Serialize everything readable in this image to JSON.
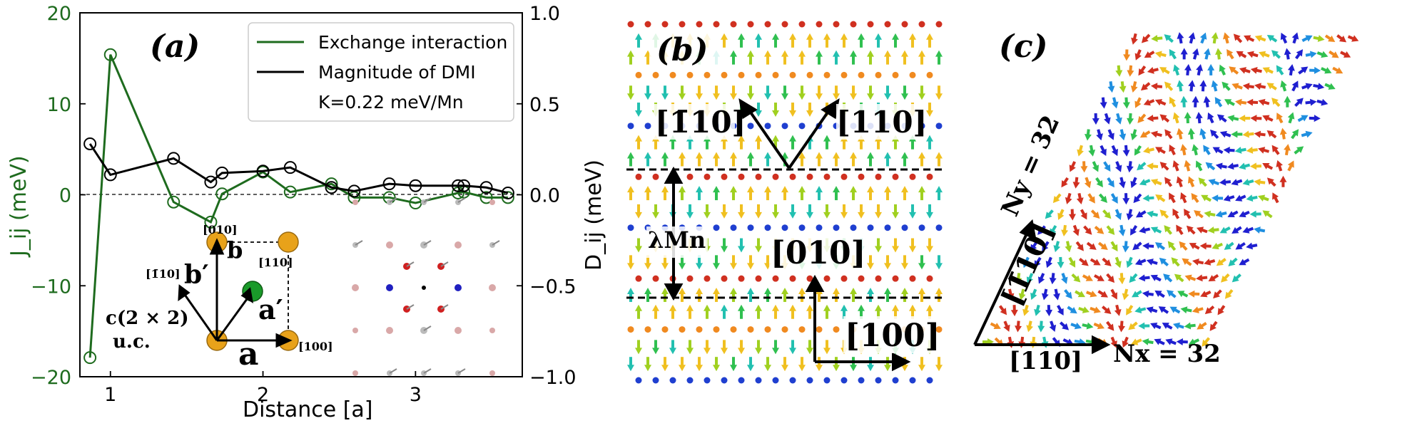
{
  "chart_data": {
    "type": "line",
    "panel_label": "(a)",
    "xlabel": "Distance [a]",
    "ylabel_left": "J_ij (meV)",
    "ylabel_right": "D_ij (meV)",
    "xlim": [
      0.8,
      3.7
    ],
    "ylim_left": [
      -20,
      20
    ],
    "ylim_right": [
      -1.0,
      1.0
    ],
    "xticks": [
      "1",
      "2",
      "3"
    ],
    "yticks_left": [
      "20",
      "10",
      "0",
      "−10",
      "−20"
    ],
    "yticks_right": [
      "1.0",
      "0.5",
      "0.0",
      "−0.5",
      "−1.0"
    ],
    "zero_line": "dashed",
    "legend_position": "top-right",
    "legend": [
      "Exchange interaction",
      "Magnitude of DMI",
      "K=0.22 meV/Mn"
    ],
    "series": [
      {
        "name": "Exchange interaction",
        "color": "#1e6b1e",
        "axis": "left",
        "x": [
          0.866,
          1.0,
          1.414,
          1.658,
          1.732,
          2.0,
          2.179,
          2.449,
          2.598,
          2.828,
          3.0,
          3.279,
          3.317,
          3.464,
          3.606
        ],
        "y": [
          -17.9,
          15.4,
          -0.8,
          -3.0,
          0.1,
          2.5,
          0.3,
          1.2,
          -0.3,
          -0.3,
          -0.9,
          0.2,
          0.3,
          -0.3,
          -0.3
        ]
      },
      {
        "name": "Magnitude of DMI",
        "color": "#000000",
        "axis": "right",
        "x": [
          0.866,
          1.0,
          1.414,
          1.658,
          1.732,
          2.0,
          2.179,
          2.449,
          2.598,
          2.828,
          3.0,
          3.279,
          3.317,
          3.464,
          3.606
        ],
        "y": [
          0.28,
          0.11,
          0.2,
          0.07,
          0.12,
          0.13,
          0.15,
          0.04,
          0.02,
          0.06,
          0.05,
          0.05,
          0.05,
          0.04,
          0.01
        ]
      }
    ]
  },
  "inset_a": {
    "miller_010": "[010]",
    "miller_110": "[110]",
    "miller_m110": "[1̄10]",
    "miller_100": "[100]",
    "vec_b_prime": "b′",
    "vec_b": "b",
    "vec_a_prime": "a′",
    "vec_a": "a",
    "cell_line1": "c(2 × 2)",
    "cell_line2": "u.c."
  },
  "panel_b": {
    "label": "(b)",
    "dir_m110": "[1̄10]",
    "dir_110": "[110]",
    "dir_010": "[010]",
    "dir_100": "[100]",
    "lambda": "λMn"
  },
  "panel_c": {
    "label": "(c)",
    "dir_m110": "[1̄10]",
    "dir_110": "[110]",
    "ny": "Ny = 32",
    "nx": "Nx = 32"
  },
  "colors": {
    "green": "#1e6b1e",
    "black": "#000000",
    "arrow_palette": [
      "#1f1fd0",
      "#1f8fe0",
      "#22c0b0",
      "#30c050",
      "#a0d020",
      "#f0c020",
      "#f08a20",
      "#d03020"
    ]
  }
}
